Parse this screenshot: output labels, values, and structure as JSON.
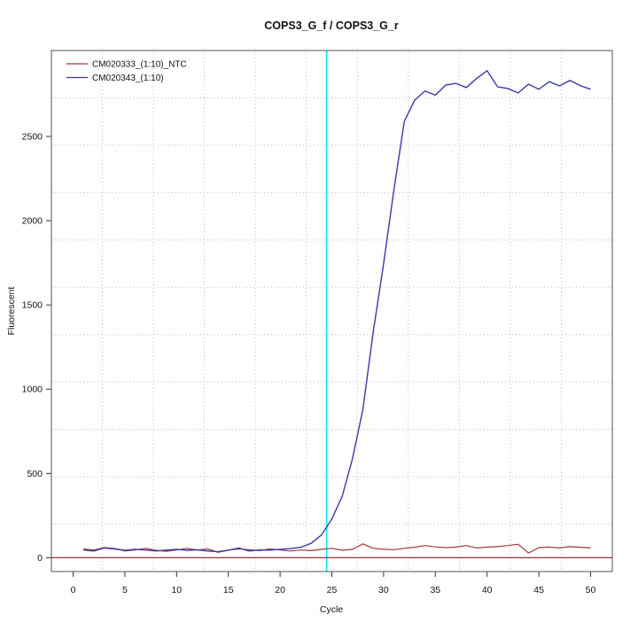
{
  "chart_data": {
    "type": "line",
    "title": "COPS3_G_f / COPS3_G_r",
    "xlabel": "Cycle",
    "ylabel": "Fluorescent",
    "x_ticks": [
      0,
      5,
      10,
      15,
      20,
      25,
      30,
      35,
      40,
      45,
      50
    ],
    "y_ticks": [
      0,
      500,
      1000,
      1500,
      2000,
      2500
    ],
    "xlim": [
      -2.1,
      52.1
    ],
    "ylim": [
      -82,
      3010
    ],
    "grid": {
      "style": "dotted",
      "divisions_x": 11,
      "divisions_y": 11,
      "color": "#bcbcbc"
    },
    "legend_position": "top-left",
    "threshold_line": {
      "cycle": 24.5,
      "color": "#00e8f0",
      "orientation": "vertical"
    },
    "baseline_line": {
      "value": 0,
      "color": "#a03232",
      "orientation": "horizontal"
    },
    "x": [
      1,
      2,
      3,
      4,
      5,
      6,
      7,
      8,
      9,
      10,
      11,
      12,
      13,
      14,
      15,
      16,
      17,
      18,
      19,
      20,
      21,
      22,
      23,
      24,
      25,
      26,
      27,
      28,
      29,
      30,
      31,
      32,
      33,
      34,
      35,
      36,
      37,
      38,
      39,
      40,
      41,
      42,
      43,
      44,
      45,
      46,
      47,
      48,
      49,
      50
    ],
    "series": [
      {
        "name": "CM020333_(1:10)_NTC",
        "color": "#a03838",
        "values": [
          52,
          46,
          60,
          55,
          40,
          46,
          56,
          44,
          38,
          46,
          56,
          46,
          52,
          32,
          45,
          52,
          48,
          42,
          52,
          46,
          40,
          46,
          42,
          50,
          56,
          44,
          50,
          82,
          56,
          50,
          48,
          56,
          62,
          72,
          64,
          60,
          63,
          72,
          58,
          63,
          66,
          72,
          80,
          28,
          60,
          63,
          58,
          66,
          62,
          58
        ]
      },
      {
        "name": "CM020343_(1:10)",
        "color": "#3a3aa5",
        "values": [
          45,
          40,
          58,
          52,
          44,
          50,
          46,
          40,
          45,
          50,
          44,
          47,
          40,
          36,
          44,
          58,
          40,
          46,
          45,
          50,
          54,
          62,
          85,
          135,
          230,
          365,
          590,
          880,
          1340,
          1745,
          2185,
          2590,
          2715,
          2770,
          2745,
          2805,
          2815,
          2790,
          2845,
          2890,
          2795,
          2785,
          2758,
          2810,
          2780,
          2825,
          2800,
          2832,
          2802,
          2780
        ]
      }
    ]
  }
}
